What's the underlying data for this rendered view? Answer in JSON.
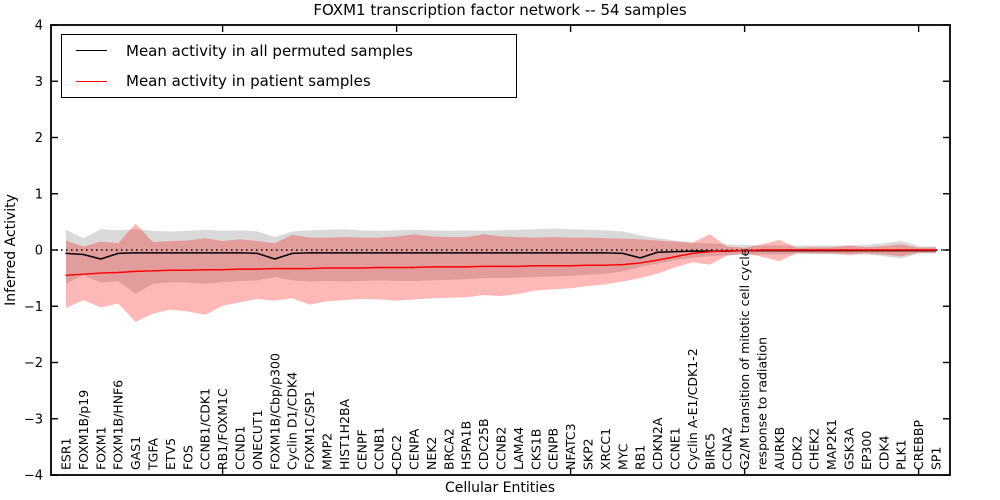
{
  "chart_data": {
    "type": "line",
    "title": "FOXM1 transcription factor network -- 54 samples",
    "xlabel": "Cellular Entities",
    "ylabel": "Inferred Activity",
    "ylim": [
      -4,
      4
    ],
    "yticks": [
      4,
      3,
      2,
      1,
      0,
      -1,
      -2,
      -3,
      -4
    ],
    "xticks_at_positions": [
      10,
      20,
      30,
      40,
      50
    ],
    "grid": false,
    "legend_position": "upper left",
    "frame_color": "#000000",
    "zero_reference_line": {
      "value": 0,
      "style": "dotted",
      "color": "#000000"
    },
    "categories": [
      "ESR1",
      "FOXM1B/p19",
      "FOXM1",
      "FOXM1B/HNF6",
      "GAS1",
      "TGFA",
      "ETV5",
      "FOS",
      "CCNB1/CDK1",
      "RB1/FOXM1C",
      "CCND1",
      "ONECUT1",
      "FOXM1B/Cbp/p300",
      "Cyclin D1/CDK4",
      "FOXM1C/SP1",
      "MMP2",
      "HIST1H2BA",
      "CENPF",
      "CCNB1",
      "CDC2",
      "CENPA",
      "NEK2",
      "BRCA2",
      "HSPA1B",
      "CDC25B",
      "CCNB2",
      "LAMA4",
      "CKS1B",
      "CENPB",
      "NFATC3",
      "SKP2",
      "XRCC1",
      "MYC",
      "RB1",
      "CDKN2A",
      "CCNE1",
      "Cyclin A-E1/CDK1-2",
      "BIRC5",
      "CCNA2",
      "G2/M transition of mitotic cell cycle",
      "response to radiation",
      "AURKB",
      "CDK2",
      "CHEK2",
      "MAP2K1",
      "GSK3A",
      "EP300",
      "CDK4",
      "PLK1",
      "CREBBP",
      "SP1"
    ],
    "series": [
      {
        "name": "Mean activity in all permuted samples",
        "color": "#000000",
        "style": "solid",
        "values": [
          -0.06,
          -0.08,
          -0.16,
          -0.06,
          -0.05,
          -0.05,
          -0.05,
          -0.05,
          -0.05,
          -0.05,
          -0.05,
          -0.06,
          -0.16,
          -0.06,
          -0.05,
          -0.05,
          -0.05,
          -0.05,
          -0.05,
          -0.05,
          -0.05,
          -0.05,
          -0.05,
          -0.05,
          -0.05,
          -0.05,
          -0.05,
          -0.05,
          -0.05,
          -0.05,
          -0.05,
          -0.05,
          -0.06,
          -0.14,
          -0.04,
          -0.03,
          -0.02,
          -0.02,
          -0.02,
          -0.01,
          -0.01,
          -0.01,
          -0.01,
          -0.01,
          -0.01,
          -0.01,
          -0.01,
          -0.01,
          -0.01,
          -0.01,
          -0.01
        ]
      },
      {
        "name": "Mean activity in patient samples",
        "color": "#ff0000",
        "style": "solid",
        "values": [
          -0.45,
          -0.43,
          -0.41,
          -0.4,
          -0.38,
          -0.37,
          -0.36,
          -0.36,
          -0.35,
          -0.35,
          -0.34,
          -0.34,
          -0.33,
          -0.33,
          -0.33,
          -0.32,
          -0.32,
          -0.32,
          -0.31,
          -0.31,
          -0.31,
          -0.3,
          -0.3,
          -0.3,
          -0.29,
          -0.29,
          -0.29,
          -0.28,
          -0.28,
          -0.28,
          -0.27,
          -0.27,
          -0.26,
          -0.23,
          -0.18,
          -0.12,
          -0.06,
          -0.03,
          -0.01,
          -0.01,
          0.0,
          0.0,
          0.0,
          0.0,
          0.0,
          0.0,
          0.0,
          0.0,
          0.0,
          0.0,
          0.0
        ]
      }
    ],
    "bands": [
      {
        "name": "permuted samples range",
        "color": "#808080",
        "opacity": 0.3,
        "upper": [
          0.36,
          0.21,
          0.37,
          0.35,
          0.37,
          0.34,
          0.33,
          0.34,
          0.36,
          0.34,
          0.35,
          0.33,
          0.23,
          0.33,
          0.35,
          0.36,
          0.37,
          0.35,
          0.34,
          0.35,
          0.36,
          0.35,
          0.34,
          0.35,
          0.34,
          0.35,
          0.36,
          0.37,
          0.38,
          0.37,
          0.36,
          0.35,
          0.33,
          0.26,
          0.21,
          0.17,
          0.13,
          0.12,
          0.1,
          0.09,
          0.08,
          0.08,
          0.08,
          0.08,
          0.08,
          0.08,
          0.09,
          0.12,
          0.16,
          0.07,
          0.06
        ],
        "lower": [
          -0.6,
          -0.45,
          -0.58,
          -0.55,
          -0.78,
          -0.6,
          -0.57,
          -0.58,
          -0.6,
          -0.57,
          -0.55,
          -0.54,
          -0.48,
          -0.54,
          -0.56,
          -0.55,
          -0.56,
          -0.55,
          -0.54,
          -0.55,
          -0.55,
          -0.54,
          -0.53,
          -0.52,
          -0.5,
          -0.5,
          -0.49,
          -0.48,
          -0.47,
          -0.46,
          -0.44,
          -0.42,
          -0.38,
          -0.3,
          -0.24,
          -0.18,
          -0.14,
          -0.11,
          -0.09,
          -0.08,
          -0.08,
          -0.08,
          -0.07,
          -0.07,
          -0.07,
          -0.07,
          -0.08,
          -0.11,
          -0.15,
          -0.06,
          -0.06
        ]
      },
      {
        "name": "patient samples range",
        "color": "#ff0000",
        "opacity": 0.28,
        "upper": [
          0.17,
          0.06,
          0.15,
          0.12,
          0.47,
          0.14,
          0.16,
          0.17,
          0.21,
          0.16,
          0.19,
          0.16,
          0.12,
          0.27,
          0.22,
          0.22,
          0.23,
          0.22,
          0.22,
          0.24,
          0.28,
          0.24,
          0.23,
          0.23,
          0.28,
          0.24,
          0.23,
          0.22,
          0.23,
          0.22,
          0.22,
          0.21,
          0.2,
          0.19,
          0.17,
          0.15,
          0.13,
          0.28,
          0.06,
          0.04,
          0.1,
          0.18,
          0.04,
          0.05,
          0.05,
          0.08,
          0.05,
          0.07,
          0.1,
          0.04,
          0.05
        ],
        "lower": [
          -1.03,
          -0.89,
          -1.02,
          -0.95,
          -1.28,
          -1.13,
          -1.06,
          -1.09,
          -1.15,
          -0.99,
          -0.93,
          -0.87,
          -0.9,
          -0.86,
          -0.97,
          -0.91,
          -0.89,
          -0.87,
          -0.88,
          -0.9,
          -0.88,
          -0.86,
          -0.85,
          -0.84,
          -0.8,
          -0.82,
          -0.78,
          -0.72,
          -0.7,
          -0.68,
          -0.64,
          -0.61,
          -0.56,
          -0.5,
          -0.42,
          -0.31,
          -0.22,
          -0.26,
          -0.1,
          -0.06,
          -0.12,
          -0.2,
          -0.05,
          -0.06,
          -0.06,
          -0.09,
          -0.06,
          -0.08,
          -0.11,
          -0.05,
          -0.05
        ]
      }
    ]
  }
}
